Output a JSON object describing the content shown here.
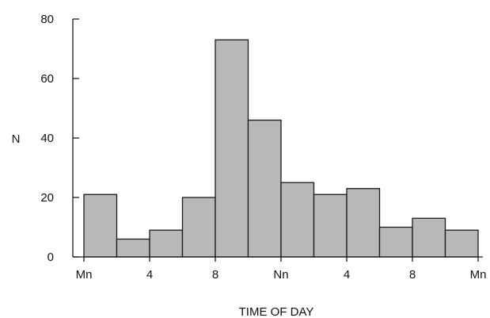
{
  "chart_data": {
    "type": "bar",
    "title": "",
    "xlabel": "TIME OF DAY",
    "ylabel": "N",
    "categories": [
      "0-2",
      "2-4",
      "4-6",
      "6-8",
      "8-10",
      "10-12",
      "12-14",
      "14-16",
      "16-18",
      "18-20",
      "20-22",
      "22-24"
    ],
    "values": [
      21,
      6,
      9,
      20,
      73,
      46,
      25,
      21,
      23,
      10,
      13,
      9
    ],
    "bin_width_hours": 2,
    "xlim": [
      0,
      24
    ],
    "ylim": [
      0,
      80
    ],
    "x_ticks": [
      {
        "hour": 0,
        "label": "Mn"
      },
      {
        "hour": 4,
        "label": "4"
      },
      {
        "hour": 8,
        "label": "8"
      },
      {
        "hour": 12,
        "label": "Nn"
      },
      {
        "hour": 16,
        "label": "4"
      },
      {
        "hour": 20,
        "label": "8"
      },
      {
        "hour": 24,
        "label": "Mn"
      }
    ],
    "y_ticks": [
      0,
      20,
      40,
      60,
      80
    ],
    "bar_fill": "#b8b8b8",
    "bar_stroke": "#1a1a1a",
    "axis_color": "#1a1a1a",
    "grid": false,
    "legend": "none"
  }
}
